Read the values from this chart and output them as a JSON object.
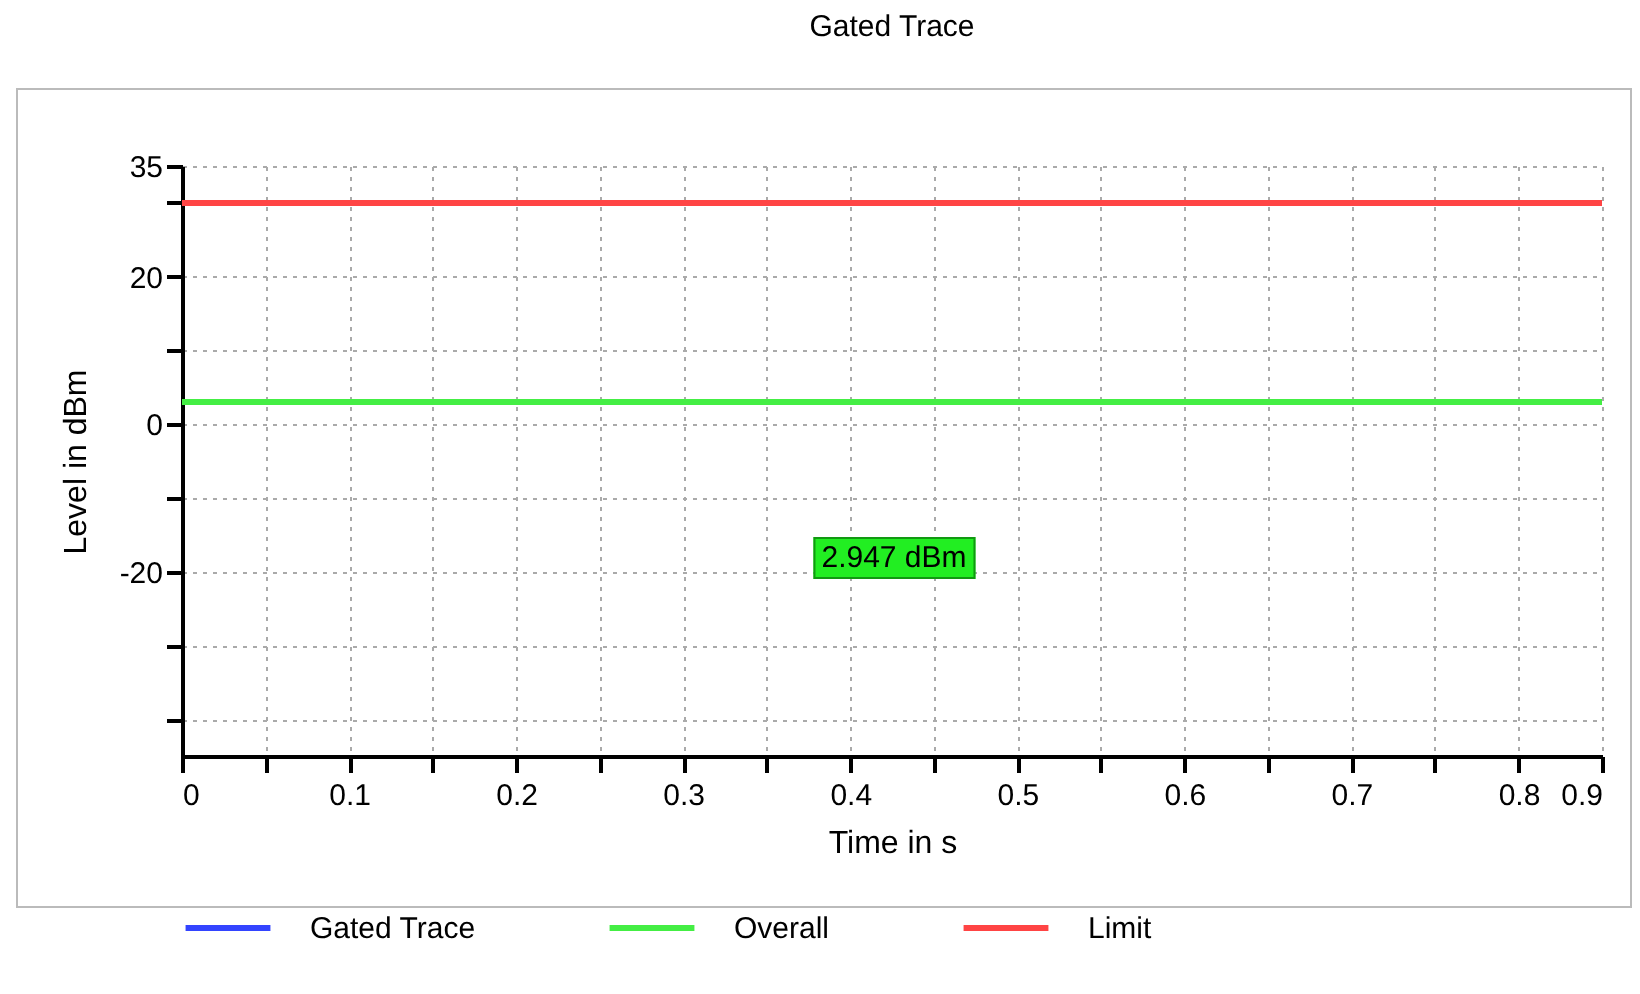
{
  "chart_data": {
    "type": "line",
    "title": "Gated Trace",
    "xlabel": "Time in s",
    "ylabel": "Level in dBm",
    "x": [
      0,
      0.85
    ],
    "series": [
      {
        "name": "Gated Trace",
        "color": "#3344ff",
        "values": [
          null,
          null
        ]
      },
      {
        "name": "Overall",
        "color": "#44ee44",
        "values": [
          3,
          3
        ]
      },
      {
        "name": "Limit",
        "color": "#ff4444",
        "values": [
          30,
          30
        ]
      }
    ],
    "xlim": [
      0,
      0.85
    ],
    "xticks": [
      0,
      {
        "value": 0.05,
        "label": null
      },
      0.1,
      {
        "value": 0.15,
        "label": null
      },
      0.2,
      {
        "value": 0.25,
        "label": null
      },
      0.3,
      {
        "value": 0.35,
        "label": null
      },
      0.4,
      {
        "value": 0.45,
        "label": null
      },
      0.5,
      {
        "value": 0.55,
        "label": null
      },
      0.6,
      {
        "value": 0.65,
        "label": null
      },
      0.7,
      {
        "value": 0.75,
        "label": null
      },
      0.8,
      {
        "value": 0.85,
        "label": "0.9"
      }
    ],
    "ylim": [
      -45,
      35
    ],
    "yticks": [
      {
        "value": -40,
        "label": null
      },
      {
        "value": -30,
        "label": null
      },
      -20,
      {
        "value": -10,
        "label": null
      },
      0,
      {
        "value": 10,
        "label": null
      },
      20,
      {
        "value": 30,
        "label": null
      },
      35
    ],
    "grid": true,
    "legend": "bottom",
    "marker": "none",
    "line_style": "solid",
    "annotations": [
      "2.947 dBm"
    ]
  }
}
